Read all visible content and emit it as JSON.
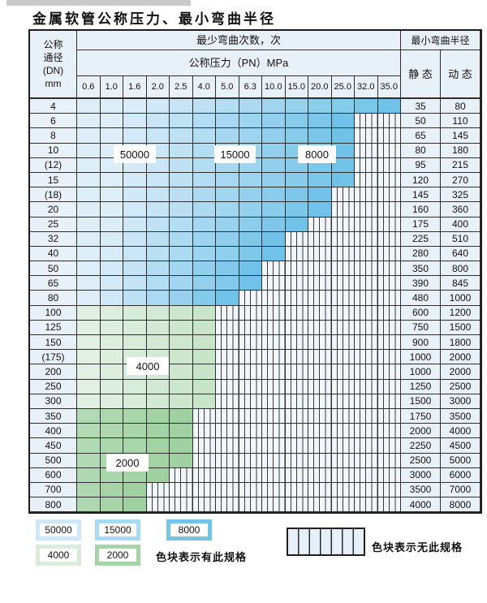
{
  "page": {
    "title": "金属软管公称压力、最小弯曲半径"
  },
  "table": {
    "dn_header_lines": [
      "公称",
      "通径",
      "(DN)",
      "mm"
    ],
    "bend_times_header": "最少弯曲次数，次",
    "pressure_header": "公称压力（PN）MPa",
    "radius_header": "最小弯曲半径",
    "static_header": "静 态",
    "dynamic_header": "动 态",
    "pressure_columns": [
      "0.6",
      "1.0",
      "1.6",
      "2.0",
      "2.5",
      "4.0",
      "5.0",
      "6.3",
      "10.0",
      "15.0",
      "20.0",
      "25.0",
      "32.0",
      "35.0"
    ],
    "rows": [
      {
        "dn": "4",
        "colored_cols": 14,
        "palette": "blue",
        "static": "35",
        "dynamic": "80"
      },
      {
        "dn": "6",
        "colored_cols": 12,
        "palette": "blue",
        "static": "50",
        "dynamic": "110"
      },
      {
        "dn": "8",
        "colored_cols": 12,
        "palette": "blue",
        "static": "65",
        "dynamic": "145"
      },
      {
        "dn": "10",
        "colored_cols": 12,
        "palette": "blue",
        "static": "80",
        "dynamic": "180"
      },
      {
        "dn": "(12)",
        "colored_cols": 12,
        "palette": "blue",
        "static": "95",
        "dynamic": "215"
      },
      {
        "dn": "15",
        "colored_cols": 12,
        "palette": "blue",
        "static": "120",
        "dynamic": "270"
      },
      {
        "dn": "(18)",
        "colored_cols": 11,
        "palette": "blue",
        "static": "145",
        "dynamic": "325"
      },
      {
        "dn": "20",
        "colored_cols": 11,
        "palette": "blue",
        "static": "160",
        "dynamic": "360"
      },
      {
        "dn": "25",
        "colored_cols": 10,
        "palette": "blue",
        "static": "175",
        "dynamic": "400"
      },
      {
        "dn": "32",
        "colored_cols": 9,
        "palette": "blue",
        "static": "225",
        "dynamic": "510"
      },
      {
        "dn": "40",
        "colored_cols": 9,
        "palette": "blue",
        "static": "280",
        "dynamic": "640"
      },
      {
        "dn": "50",
        "colored_cols": 8,
        "palette": "blue",
        "static": "350",
        "dynamic": "800"
      },
      {
        "dn": "65",
        "colored_cols": 8,
        "palette": "blue",
        "static": "390",
        "dynamic": "845"
      },
      {
        "dn": "80",
        "colored_cols": 7,
        "palette": "blue",
        "static": "480",
        "dynamic": "1000"
      },
      {
        "dn": "100",
        "colored_cols": 6,
        "palette": "green-light",
        "static": "600",
        "dynamic": "1200"
      },
      {
        "dn": "125",
        "colored_cols": 6,
        "palette": "green-light",
        "static": "750",
        "dynamic": "1500"
      },
      {
        "dn": "150",
        "colored_cols": 6,
        "palette": "green-light",
        "static": "900",
        "dynamic": "1800"
      },
      {
        "dn": "(175)",
        "colored_cols": 6,
        "palette": "green-light",
        "static": "1000",
        "dynamic": "2000"
      },
      {
        "dn": "200",
        "colored_cols": 6,
        "palette": "green-light",
        "static": "1000",
        "dynamic": "2000"
      },
      {
        "dn": "250",
        "colored_cols": 6,
        "palette": "green-light",
        "static": "1250",
        "dynamic": "2500"
      },
      {
        "dn": "300",
        "colored_cols": 6,
        "palette": "green-light",
        "static": "1500",
        "dynamic": "3000"
      },
      {
        "dn": "350",
        "colored_cols": 5,
        "palette": "green-dark",
        "static": "1750",
        "dynamic": "3500"
      },
      {
        "dn": "400",
        "colored_cols": 5,
        "palette": "green-dark",
        "static": "2000",
        "dynamic": "4000"
      },
      {
        "dn": "450",
        "colored_cols": 5,
        "palette": "green-dark",
        "static": "2250",
        "dynamic": "4500"
      },
      {
        "dn": "500",
        "colored_cols": 5,
        "palette": "green-dark",
        "static": "2500",
        "dynamic": "5000"
      },
      {
        "dn": "600",
        "colored_cols": 4,
        "palette": "green-dark",
        "static": "3000",
        "dynamic": "6000"
      },
      {
        "dn": "700",
        "colored_cols": 3,
        "palette": "green-dark",
        "static": "3500",
        "dynamic": "7000"
      },
      {
        "dn": "800",
        "colored_cols": 3,
        "palette": "green-dark",
        "static": "4000",
        "dynamic": "8000"
      }
    ]
  },
  "overlay_labels": [
    "50000",
    "15000",
    "8000",
    "4000",
    "2000"
  ],
  "legend": {
    "items": [
      {
        "label": "50000",
        "color": "#cfe8f7"
      },
      {
        "label": "15000",
        "color": "#a9daf3"
      },
      {
        "label": "8000",
        "color": "#74c3e8"
      },
      {
        "label": "4000",
        "color": "#d8ecd9"
      },
      {
        "label": "2000",
        "color": "#a5d4a7"
      }
    ],
    "has_spec_text": "色块表示有此规格",
    "no_spec_text": "色块表示无此规格"
  },
  "colors": {
    "blue_light": "#deeef9",
    "blue_dark": "#71c2e8",
    "green_light_a": "#e2f0e4",
    "green_light_b": "#c8e5ca",
    "green_dark_a": "#b2dab4",
    "green_dark_b": "#9ed0a0",
    "header_bg": "#e9f1f8",
    "hatch_bg": "#f0f6fa",
    "grid_line": "#2e2e2e"
  }
}
